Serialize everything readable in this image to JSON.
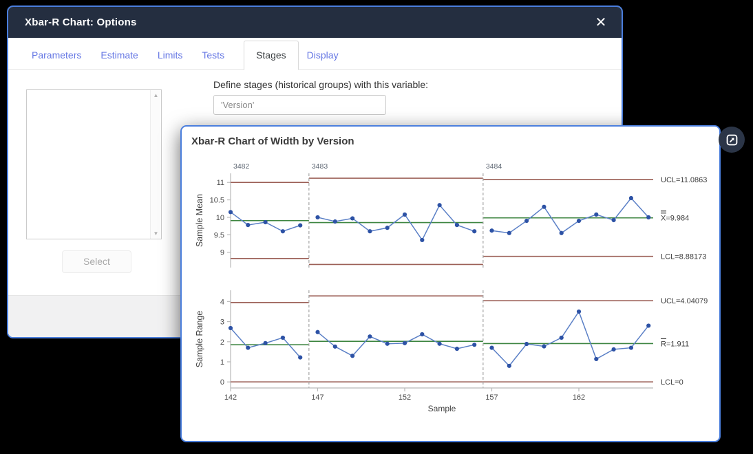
{
  "dialog": {
    "title": "Xbar-R Chart: Options",
    "tabs": [
      {
        "label": "Parameters",
        "active": false
      },
      {
        "label": "Estimate",
        "active": false
      },
      {
        "label": "Limits",
        "active": false
      },
      {
        "label": "Tests",
        "active": false
      },
      {
        "label": "Stages",
        "active": true
      },
      {
        "label": "Display",
        "active": false
      }
    ],
    "stages_tab": {
      "define_label": "Define stages (historical groups) with this variable:",
      "variable_value": "'Version'",
      "select_button": "Select"
    }
  },
  "icons": {
    "close_x": "✕",
    "scroll_up": "▲",
    "scroll_down": "▼"
  },
  "chart_window": {
    "title": "Xbar-R Chart of Width by Version"
  },
  "chart_data": {
    "type": "line",
    "title": "Xbar-R Chart of Width by Version",
    "xlabel": "Sample",
    "x": [
      142,
      143,
      144,
      145,
      146,
      147,
      148,
      149,
      150,
      151,
      152,
      153,
      154,
      155,
      156,
      157,
      158,
      159,
      160,
      161,
      162,
      163,
      164,
      165,
      166
    ],
    "x_ticks": [
      142,
      147,
      152,
      157,
      162
    ],
    "colors": {
      "limit_line": "#9c6057",
      "center_line": "#3d8540",
      "series_line": "#5a7fc6",
      "marker": "#2d52a5",
      "stage_divider": "#a6a6a6",
      "axis": "#b9b9b9",
      "tick_text": "#4a4a4a",
      "stage_label_text": "#5e6773",
      "annotation_text": "#3c3c3c"
    },
    "panels": [
      {
        "ylabel": "Sample Mean",
        "ylim": [
          8.56,
          11.26
        ],
        "yticks": [
          9,
          9.5,
          10,
          10.5,
          11
        ],
        "values": [
          10.15,
          9.78,
          9.86,
          9.6,
          9.77,
          10.0,
          9.88,
          9.97,
          9.6,
          9.7,
          10.08,
          9.35,
          10.35,
          9.78,
          9.6,
          9.62,
          9.55,
          9.9,
          10.3,
          9.55,
          9.9,
          10.08,
          9.92,
          10.55,
          10.0
        ],
        "stages": [
          {
            "label": "3482",
            "start": 142,
            "end": 146,
            "ucl": 11.0,
            "center": 9.905,
            "lcl": 8.82
          },
          {
            "label": "3483",
            "start": 147,
            "end": 156,
            "ucl": 11.12,
            "center": 9.85,
            "lcl": 8.65
          },
          {
            "label": "3484",
            "start": 157,
            "end": 166,
            "ucl": 11.0863,
            "center": 9.984,
            "lcl": 8.88173
          }
        ],
        "annotations": [
          {
            "text": "UCL=11.0863",
            "at": 11.0863,
            "bars": 0
          },
          {
            "text": "X=9.984",
            "at": 9.984,
            "bars": 2
          },
          {
            "text": "LCL=8.88173",
            "at": 8.88173,
            "bars": 0
          }
        ]
      },
      {
        "ylabel": "Sample Range",
        "ylim": [
          -0.3,
          4.56
        ],
        "yticks": [
          0,
          1,
          2,
          3,
          4
        ],
        "values": [
          2.68,
          1.7,
          1.93,
          2.2,
          1.22,
          2.48,
          1.76,
          1.3,
          2.26,
          1.9,
          1.93,
          2.37,
          1.9,
          1.65,
          1.85,
          1.7,
          0.8,
          1.89,
          1.77,
          2.2,
          3.5,
          1.14,
          1.62,
          1.7,
          2.8
        ],
        "stages": [
          {
            "label": "3482",
            "start": 142,
            "end": 146,
            "ucl": 3.95,
            "center": 1.85,
            "lcl": 0
          },
          {
            "label": "3483",
            "start": 147,
            "end": 156,
            "ucl": 4.28,
            "center": 2.02,
            "lcl": 0
          },
          {
            "label": "3484",
            "start": 157,
            "end": 166,
            "ucl": 4.04079,
            "center": 1.911,
            "lcl": 0
          }
        ],
        "annotations": [
          {
            "text": "UCL=4.04079",
            "at": 4.04079,
            "bars": 0
          },
          {
            "text": "R=1.911",
            "at": 1.911,
            "bars": 1
          },
          {
            "text": "LCL=0",
            "at": 0,
            "bars": 0
          }
        ]
      }
    ]
  }
}
